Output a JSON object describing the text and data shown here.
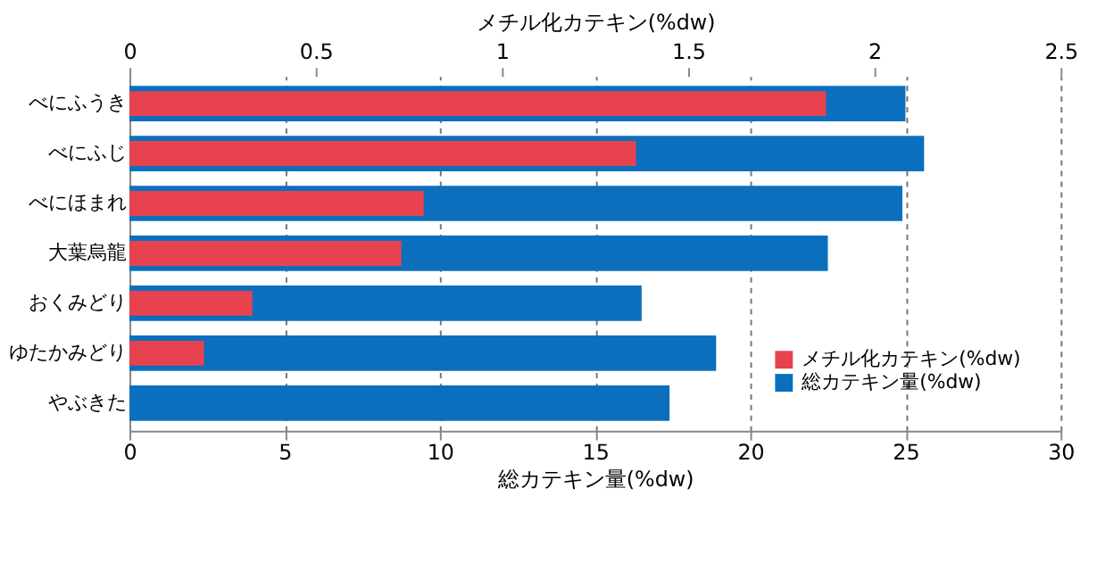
{
  "chart_data": {
    "type": "bar",
    "orientation": "horizontal",
    "xlabel": "総カテキン量(%dw)",
    "x2label": "メチル化カテキン(%dw)",
    "categories": [
      "べにふうき",
      "べにふじ",
      "べにほまれ",
      "大葉烏龍",
      "おくみどり",
      "ゆたかみどり",
      "やぶきた"
    ],
    "series": [
      {
        "name": "メチル化カテキン(%dw)",
        "color": "#e8424e",
        "axis": "x2",
        "values": [
          1.87,
          1.36,
          0.79,
          0.73,
          0.33,
          0.2,
          null
        ]
      },
      {
        "name": "総カテキン量(%dw)",
        "color": "#0b6fbe",
        "values": [
          25.0,
          25.6,
          24.9,
          22.5,
          16.5,
          18.9,
          17.4
        ]
      }
    ],
    "xlim": [
      0,
      30
    ],
    "xticks": [
      0,
      5,
      10,
      15,
      20,
      25,
      30
    ],
    "x2lim": [
      0,
      2.5
    ],
    "x2ticks": [
      0,
      0.5,
      1,
      1.5,
      2,
      2.5
    ],
    "grid": "x",
    "legend": "bottom right"
  }
}
